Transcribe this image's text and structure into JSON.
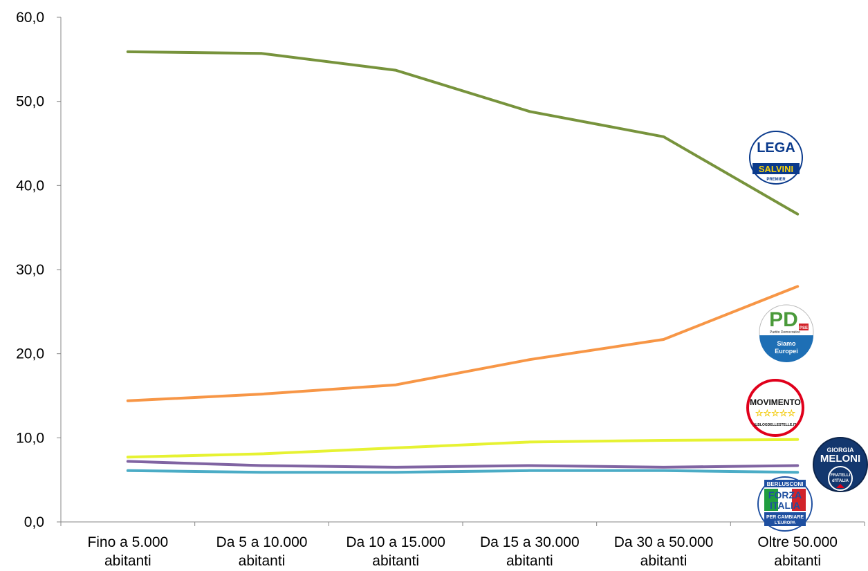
{
  "chart_data": {
    "type": "line",
    "title": "",
    "xlabel": "",
    "ylabel": "",
    "categories": [
      [
        "Fino a 5.000",
        "abitanti"
      ],
      [
        "Da 5 a 10.000",
        "abitanti"
      ],
      [
        "Da 10 a 15.000",
        "abitanti"
      ],
      [
        "Da 15 a 30.000",
        "abitanti"
      ],
      [
        "Da 30 a 50.000",
        "abitanti"
      ],
      [
        "Oltre 50.000",
        "abitanti"
      ]
    ],
    "y_ticks": [
      "0,0",
      "10,0",
      "20,0",
      "30,0",
      "40,0",
      "50,0",
      "60,0"
    ],
    "ylim": [
      0,
      60
    ],
    "grid": false,
    "legend": "logos at right end of each series",
    "series": [
      {
        "color": "#77933c",
        "logo": "lega-salvini-logo",
        "values": [
          55.9,
          55.7,
          53.7,
          48.8,
          45.8,
          36.6
        ]
      },
      {
        "color": "#f79646",
        "logo": "pd-logo",
        "values": [
          14.4,
          15.2,
          16.3,
          19.3,
          21.7,
          28.0
        ]
      },
      {
        "color": "#e6f232",
        "logo": "movimento-5-stelle-logo",
        "values": [
          7.7,
          8.1,
          8.8,
          9.5,
          9.7,
          9.8
        ]
      },
      {
        "color": "#8064a2",
        "logo": "fratelli-ditalia-logo",
        "values": [
          7.2,
          6.7,
          6.5,
          6.7,
          6.5,
          6.7
        ]
      },
      {
        "color": "#4bacc6",
        "logo": "forza-italia-logo",
        "values": [
          6.1,
          5.9,
          5.9,
          6.1,
          6.1,
          5.9
        ]
      }
    ]
  },
  "logos": {
    "lega": {
      "line1": "LEGA",
      "line2": "SALVINI",
      "line3": "PREMIER",
      "bg": "#0a3a8c",
      "accent": "#f5d10a"
    },
    "pd": {
      "line1": "PD",
      "line2": "Partito Democratico",
      "line3": "Siamo",
      "line4": "Europei",
      "tag": "PSE"
    },
    "m5s": {
      "line1": "MOVIMENTO",
      "line2": "☆☆☆☆☆",
      "line3": "ILBLOGDELLESTELLE.IT"
    },
    "fdi": {
      "line1": "GIORGIA",
      "line2": "MELONI",
      "line3": "FRATELLI",
      "line4": "d'ITALIA"
    },
    "fi": {
      "line1": "BERLUSCONI",
      "line2": "FORZA",
      "line3": "ITALIA",
      "line4": "PER CAMBIARE",
      "line5": "L'EUROPA"
    }
  }
}
